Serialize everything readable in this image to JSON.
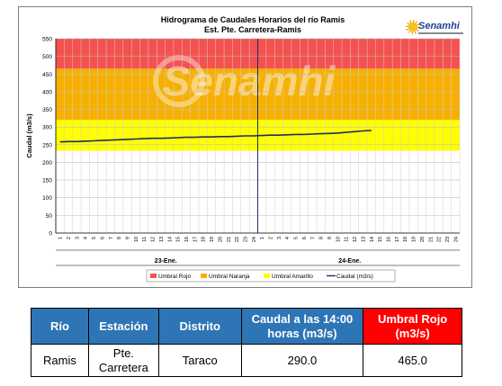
{
  "chart_data": {
    "type": "line",
    "title": "Hidrograma de Caudales Horarios del río Ramis",
    "subtitle": "Est. Pte. Carretera-Ramis",
    "ylabel": "Caudal (m3/s)",
    "ylim": [
      0,
      550
    ],
    "yticks": [
      0,
      50,
      100,
      150,
      200,
      250,
      300,
      350,
      400,
      450,
      500,
      550
    ],
    "x_hour_labels": [
      "1",
      "2",
      "3",
      "4",
      "5",
      "6",
      "7",
      "8",
      "9",
      "10",
      "11",
      "12",
      "13",
      "14",
      "15",
      "16",
      "17",
      "18",
      "19",
      "20",
      "21",
      "22",
      "23",
      "24",
      "1",
      "2",
      "3",
      "4",
      "5",
      "6",
      "7",
      "8",
      "9",
      "10",
      "11",
      "12",
      "13",
      "14",
      "15",
      "16",
      "17",
      "18",
      "19",
      "20",
      "21",
      "22",
      "23",
      "24"
    ],
    "day_labels": [
      "23-Ene.",
      "24-Ene."
    ],
    "thresholds": [
      {
        "name": "Umbral Rojo",
        "from": 465,
        "to": 550,
        "color": "#f4524f"
      },
      {
        "name": "Umbral Naranja",
        "from": 320,
        "to": 465,
        "color": "#f8b000"
      },
      {
        "name": "Umbral Amarillo",
        "from": 233,
        "to": 320,
        "color": "#ffff00"
      }
    ],
    "series": [
      {
        "name": "Caudal (m3/s)",
        "color": "#1f2d5c",
        "values": [
          258,
          259,
          259,
          260,
          261,
          262,
          263,
          264,
          265,
          266,
          267,
          268,
          268,
          269,
          270,
          271,
          271,
          272,
          272,
          273,
          273,
          274,
          275,
          275,
          276,
          277,
          277,
          278,
          279,
          279,
          280,
          281,
          282,
          283,
          285,
          287,
          289,
          290
        ]
      }
    ],
    "watermark": "Senamhi",
    "grid": true,
    "legend_position": "bottom"
  },
  "logo": {
    "text": "Senamhi"
  },
  "table": {
    "headers": [
      "Río",
      "Estación",
      "Distrito",
      "Caudal a las 14:00 horas (m3/s)",
      "Umbral Rojo (m3/s)"
    ],
    "row": [
      "Ramis",
      "Pte. Carretera",
      "Taraco",
      "290.0",
      "465.0"
    ]
  }
}
